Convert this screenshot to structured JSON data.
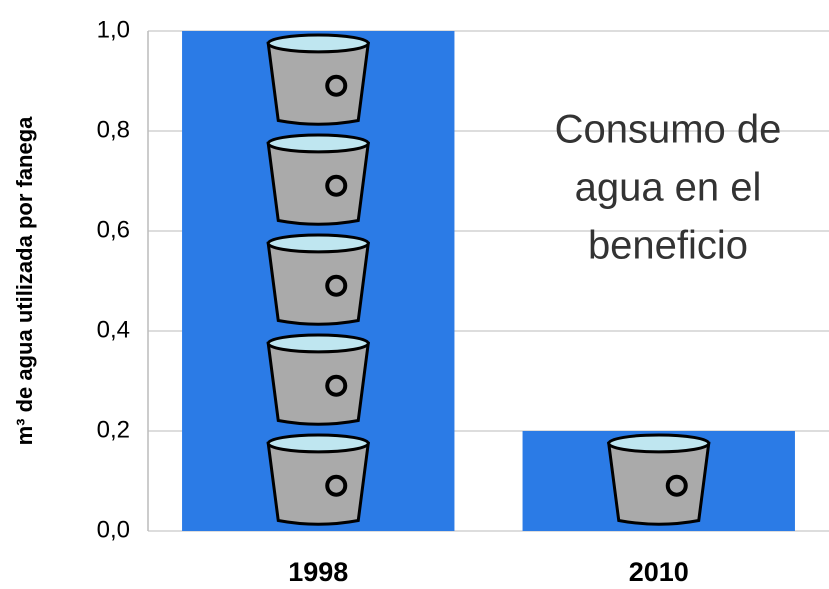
{
  "chart_data": {
    "type": "bar",
    "y_label": "m³ de agua utilizada por fanega",
    "annotation": [
      "Consumo de",
      "agua en el",
      "beneficio"
    ],
    "categories": [
      "1998",
      "2010"
    ],
    "values": [
      1.0,
      0.2
    ],
    "color": "#2b7be6",
    "ylim": [
      0,
      1
    ],
    "yticks": [
      {
        "value": 0,
        "label": "0,0"
      },
      {
        "value": 0.2,
        "label": "0,2"
      },
      {
        "value": 0.4,
        "label": "0,4"
      },
      {
        "value": 0.6,
        "label": "0,6"
      },
      {
        "value": 0.8,
        "label": "0,8"
      },
      {
        "value": 1,
        "label": "1,0"
      }
    ],
    "grid": true
  }
}
